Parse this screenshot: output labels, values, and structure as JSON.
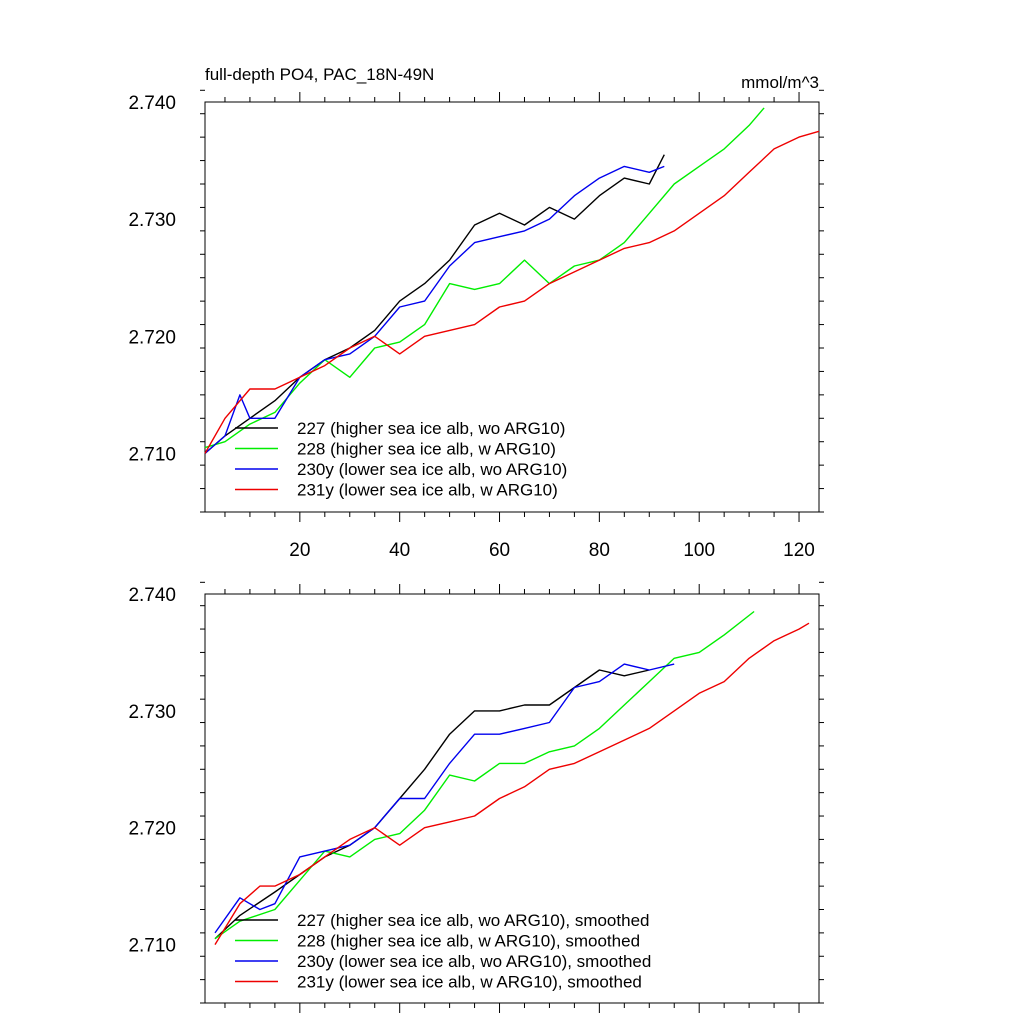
{
  "title_left": "full-depth PO4, PAC_18N-49N",
  "title_right": "mmol/m^3",
  "colors": {
    "s227": "#000000",
    "s228": "#00ee00",
    "s230": "#0000ee",
    "s231": "#ee0000"
  },
  "chart_data": [
    {
      "type": "line",
      "panel": "top",
      "xlim": [
        1,
        124
      ],
      "ylim": [
        2.705,
        2.74
      ],
      "xticks": [
        20,
        40,
        60,
        80,
        100,
        120
      ],
      "xtick_labels": [
        "20",
        "40",
        "60",
        "80",
        "100",
        "120"
      ],
      "yticks": [
        2.71,
        2.72,
        2.73,
        2.74
      ],
      "ytick_labels": [
        "2.710",
        "2.720",
        "2.730",
        "2.740"
      ],
      "series": [
        {
          "name": "227 (higher sea ice alb, wo ARG10)",
          "color": "#000000",
          "x": [
            1,
            5,
            10,
            15,
            20,
            25,
            30,
            35,
            40,
            45,
            50,
            55,
            60,
            65,
            70,
            75,
            80,
            85,
            90,
            93
          ],
          "y": [
            2.71,
            2.7115,
            2.713,
            2.7145,
            2.7165,
            2.718,
            2.719,
            2.7205,
            2.723,
            2.7245,
            2.7265,
            2.7295,
            2.7305,
            2.7295,
            2.731,
            2.73,
            2.732,
            2.7335,
            2.733,
            2.7355
          ]
        },
        {
          "name": "228 (higher sea ice alb, w ARG10)",
          "color": "#00ee00",
          "x": [
            1,
            5,
            10,
            15,
            20,
            25,
            30,
            35,
            40,
            45,
            50,
            55,
            60,
            65,
            70,
            75,
            80,
            85,
            90,
            95,
            100,
            105,
            110,
            113
          ],
          "y": [
            2.7105,
            2.711,
            2.7125,
            2.7135,
            2.716,
            2.718,
            2.7165,
            2.719,
            2.7195,
            2.721,
            2.7245,
            2.724,
            2.7245,
            2.7265,
            2.7245,
            2.726,
            2.7265,
            2.728,
            2.7305,
            2.733,
            2.7345,
            2.736,
            2.738,
            2.7395
          ]
        },
        {
          "name": "230y (lower sea ice alb, wo ARG10)",
          "color": "#0000ee",
          "x": [
            1,
            5,
            8,
            10,
            15,
            20,
            25,
            30,
            35,
            40,
            45,
            50,
            55,
            60,
            65,
            70,
            75,
            80,
            85,
            90,
            93
          ],
          "y": [
            2.71,
            2.7115,
            2.715,
            2.713,
            2.713,
            2.7165,
            2.718,
            2.7185,
            2.72,
            2.7225,
            2.723,
            2.726,
            2.728,
            2.7285,
            2.729,
            2.73,
            2.732,
            2.7335,
            2.7345,
            2.734,
            2.7345
          ]
        },
        {
          "name": "231y (lower sea ice alb, w ARG10)",
          "color": "#ee0000",
          "x": [
            1,
            5,
            10,
            15,
            20,
            25,
            30,
            35,
            40,
            45,
            50,
            55,
            60,
            65,
            70,
            75,
            80,
            85,
            90,
            95,
            100,
            105,
            110,
            115,
            120,
            124
          ],
          "y": [
            2.71,
            2.713,
            2.7155,
            2.7155,
            2.7165,
            2.7175,
            2.719,
            2.72,
            2.7185,
            2.72,
            2.7205,
            2.721,
            2.7225,
            2.723,
            2.7245,
            2.7255,
            2.7265,
            2.7275,
            2.728,
            2.729,
            2.7305,
            2.732,
            2.734,
            2.736,
            2.737,
            2.7375
          ]
        }
      ],
      "legend": [
        "227 (higher sea ice alb, wo ARG10)",
        "228 (higher sea ice alb, w ARG10)",
        "230y (lower sea ice alb, wo ARG10)",
        "231y (lower sea ice alb, w ARG10)"
      ]
    },
    {
      "type": "line",
      "panel": "bottom",
      "xlim": [
        1,
        124
      ],
      "ylim": [
        2.705,
        2.74
      ],
      "yticks": [
        2.71,
        2.72,
        2.73,
        2.74
      ],
      "ytick_labels": [
        "2.710",
        "2.720",
        "2.730",
        "2.740"
      ],
      "series": [
        {
          "name": "227 (higher sea ice alb, wo ARG10), smoothed",
          "color": "#000000",
          "x": [
            3,
            8,
            15,
            20,
            25,
            30,
            35,
            40,
            45,
            50,
            55,
            60,
            65,
            70,
            75,
            80,
            85,
            90
          ],
          "y": [
            2.7105,
            2.7125,
            2.7145,
            2.716,
            2.7175,
            2.7185,
            2.72,
            2.7225,
            2.725,
            2.728,
            2.73,
            2.73,
            2.7305,
            2.7305,
            2.732,
            2.7335,
            2.733,
            2.7335
          ]
        },
        {
          "name": "228 (higher sea ice alb, w ARG10), smoothed",
          "color": "#00ee00",
          "x": [
            3,
            8,
            15,
            20,
            25,
            30,
            35,
            40,
            45,
            50,
            55,
            60,
            65,
            70,
            75,
            80,
            85,
            90,
            95,
            100,
            105,
            111
          ],
          "y": [
            2.7105,
            2.712,
            2.713,
            2.7155,
            2.718,
            2.7175,
            2.719,
            2.7195,
            2.7215,
            2.7245,
            2.724,
            2.7255,
            2.7255,
            2.7265,
            2.727,
            2.7285,
            2.7305,
            2.7325,
            2.7345,
            2.735,
            2.7365,
            2.7385
          ]
        },
        {
          "name": "230y (lower sea ice alb, wo ARG10), smoothed",
          "color": "#0000ee",
          "x": [
            3,
            8,
            12,
            15,
            20,
            25,
            30,
            35,
            40,
            45,
            50,
            55,
            60,
            65,
            70,
            75,
            80,
            85,
            90,
            95
          ],
          "y": [
            2.711,
            2.714,
            2.713,
            2.7135,
            2.7175,
            2.718,
            2.7185,
            2.72,
            2.7225,
            2.7225,
            2.7255,
            2.728,
            2.728,
            2.7285,
            2.729,
            2.732,
            2.7325,
            2.734,
            2.7335,
            2.734
          ]
        },
        {
          "name": "231y (lower sea ice alb, w ARG10), smoothed",
          "color": "#ee0000",
          "x": [
            3,
            8,
            12,
            15,
            20,
            25,
            30,
            35,
            40,
            45,
            50,
            55,
            60,
            65,
            70,
            75,
            80,
            85,
            90,
            95,
            100,
            105,
            110,
            115,
            120,
            122
          ],
          "y": [
            2.71,
            2.7135,
            2.715,
            2.715,
            2.716,
            2.7175,
            2.719,
            2.72,
            2.7185,
            2.72,
            2.7205,
            2.721,
            2.7225,
            2.7235,
            2.725,
            2.7255,
            2.7265,
            2.7275,
            2.7285,
            2.73,
            2.7315,
            2.7325,
            2.7345,
            2.736,
            2.737,
            2.7375
          ]
        }
      ],
      "legend": [
        "227 (higher sea ice alb, wo ARG10), smoothed",
        "228 (higher sea ice alb, w ARG10), smoothed",
        "230y (lower sea ice alb, wo ARG10), smoothed",
        "231y (lower sea ice alb, w ARG10), smoothed"
      ]
    }
  ]
}
